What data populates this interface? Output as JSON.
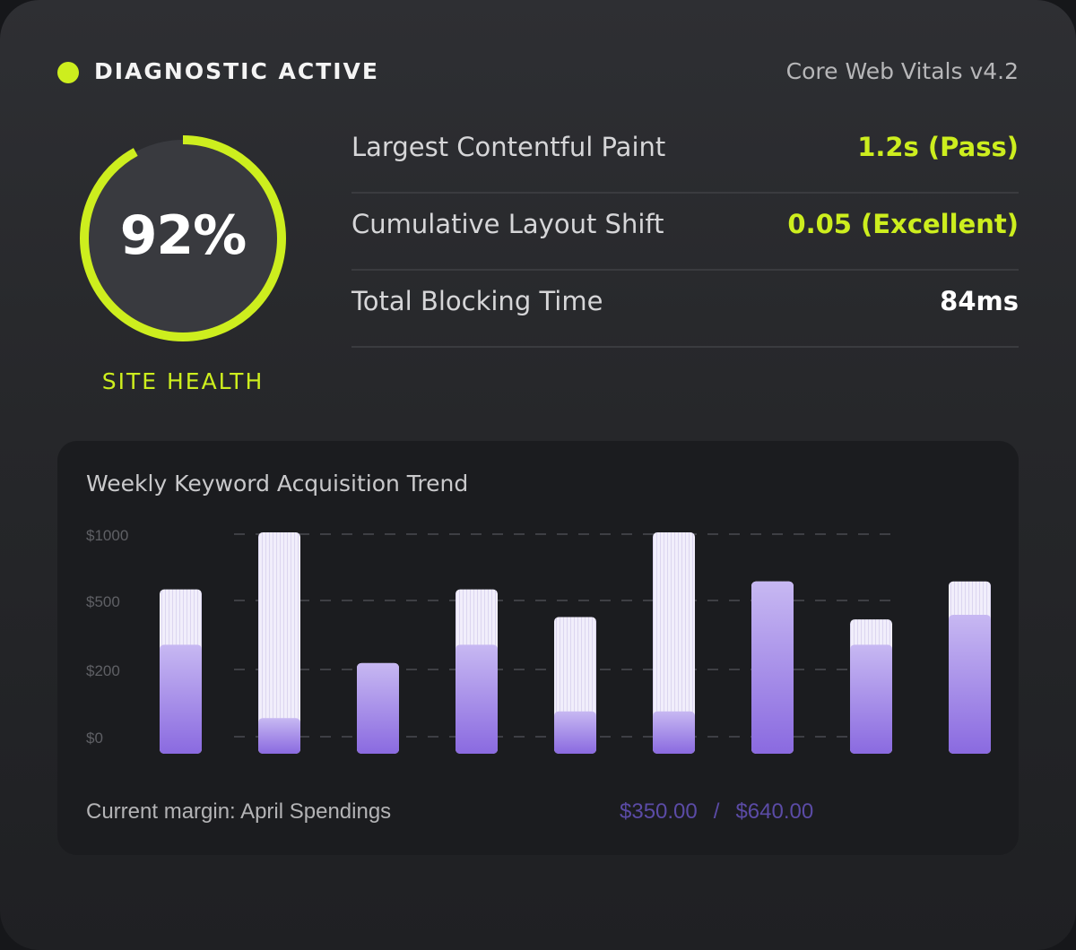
{
  "header": {
    "status_label": "DIAGNOSTIC ACTIVE",
    "version_label": "Core Web Vitals v4.2"
  },
  "health": {
    "value_text": "92%",
    "percent": 92,
    "caption": "SITE HEALTH"
  },
  "metrics": [
    {
      "label": "Largest Contentful Paint",
      "value": "1.2s (Pass)",
      "color": "#cdee1e"
    },
    {
      "label": "Cumulative Layout Shift",
      "value": "0.05 (Excellent)",
      "color": "#cdee1e"
    },
    {
      "label": "Total Blocking Time",
      "value": "84ms",
      "color": "#ffffff"
    }
  ],
  "colors": {
    "accent": "#cdee1e",
    "bar_fill": "#8a6ae0",
    "bar_background": "#f1eefb",
    "footer_values": "#5b4ba6"
  },
  "chart": {
    "title": "Weekly Keyword Acquisition Trend",
    "footer_label": "Current margin: April Spendings",
    "footer_value_current": "$350.00",
    "footer_separator": "/",
    "footer_value_total": "$640.00"
  },
  "chart_data": {
    "type": "bar",
    "title": "Weekly Keyword Acquisition Trend",
    "y_tick_labels": [
      "$1000",
      "$500",
      "$200",
      "$0"
    ],
    "y_ticks": [
      1000,
      500,
      200,
      0
    ],
    "grid": true,
    "series": [
      {
        "values": [
          300,
          50,
          220,
          300,
          70,
          70,
          630,
          300,
          430
        ]
      },
      {
        "values": [
          570,
          1000,
          220,
          570,
          420,
          1000,
          630,
          410,
          630
        ]
      }
    ]
  }
}
